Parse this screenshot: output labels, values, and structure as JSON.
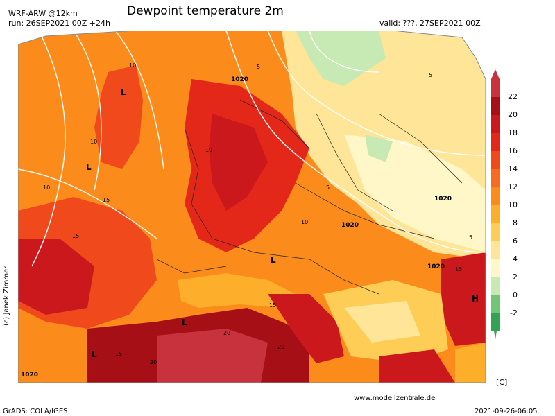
{
  "header": {
    "model": "WRF-ARW @12km",
    "run": "run: 26SEP2021 00Z +24h",
    "title": "Dewpoint temperature 2m",
    "valid": "valid: ???, 27SEP2021 00Z"
  },
  "map": {
    "pressure_labels": [
      "1020",
      "1020",
      "1020",
      "1020",
      "1020"
    ],
    "pressure_centers": [
      "L",
      "L",
      "L",
      "L",
      "L",
      "H"
    ],
    "contour_labels": [
      "10",
      "10",
      "10",
      "10",
      "10",
      "15",
      "15",
      "15",
      "15",
      "15",
      "20",
      "20",
      "20",
      "5",
      "5",
      "5",
      "5"
    ],
    "credit": "(c) Janek Zimmer"
  },
  "colorbar": {
    "ticks": [
      "22",
      "20",
      "18",
      "16",
      "14",
      "12",
      "10",
      "8",
      "6",
      "4",
      "2",
      "0",
      "-2"
    ],
    "colors": [
      "#c8323c",
      "#a50f15",
      "#cb181d",
      "#e3281a",
      "#f04a1c",
      "#f76a1f",
      "#fb8c1c",
      "#fdae2b",
      "#fdcd56",
      "#fee598",
      "#fff7c8",
      "#c7e9b4",
      "#74c476",
      "#31a354"
    ],
    "unit": "[C]"
  },
  "footer": {
    "left": "GrADS: COLA/IGES",
    "center": "www.modellzentrale.de",
    "right": "2021-09-26-06:05"
  }
}
